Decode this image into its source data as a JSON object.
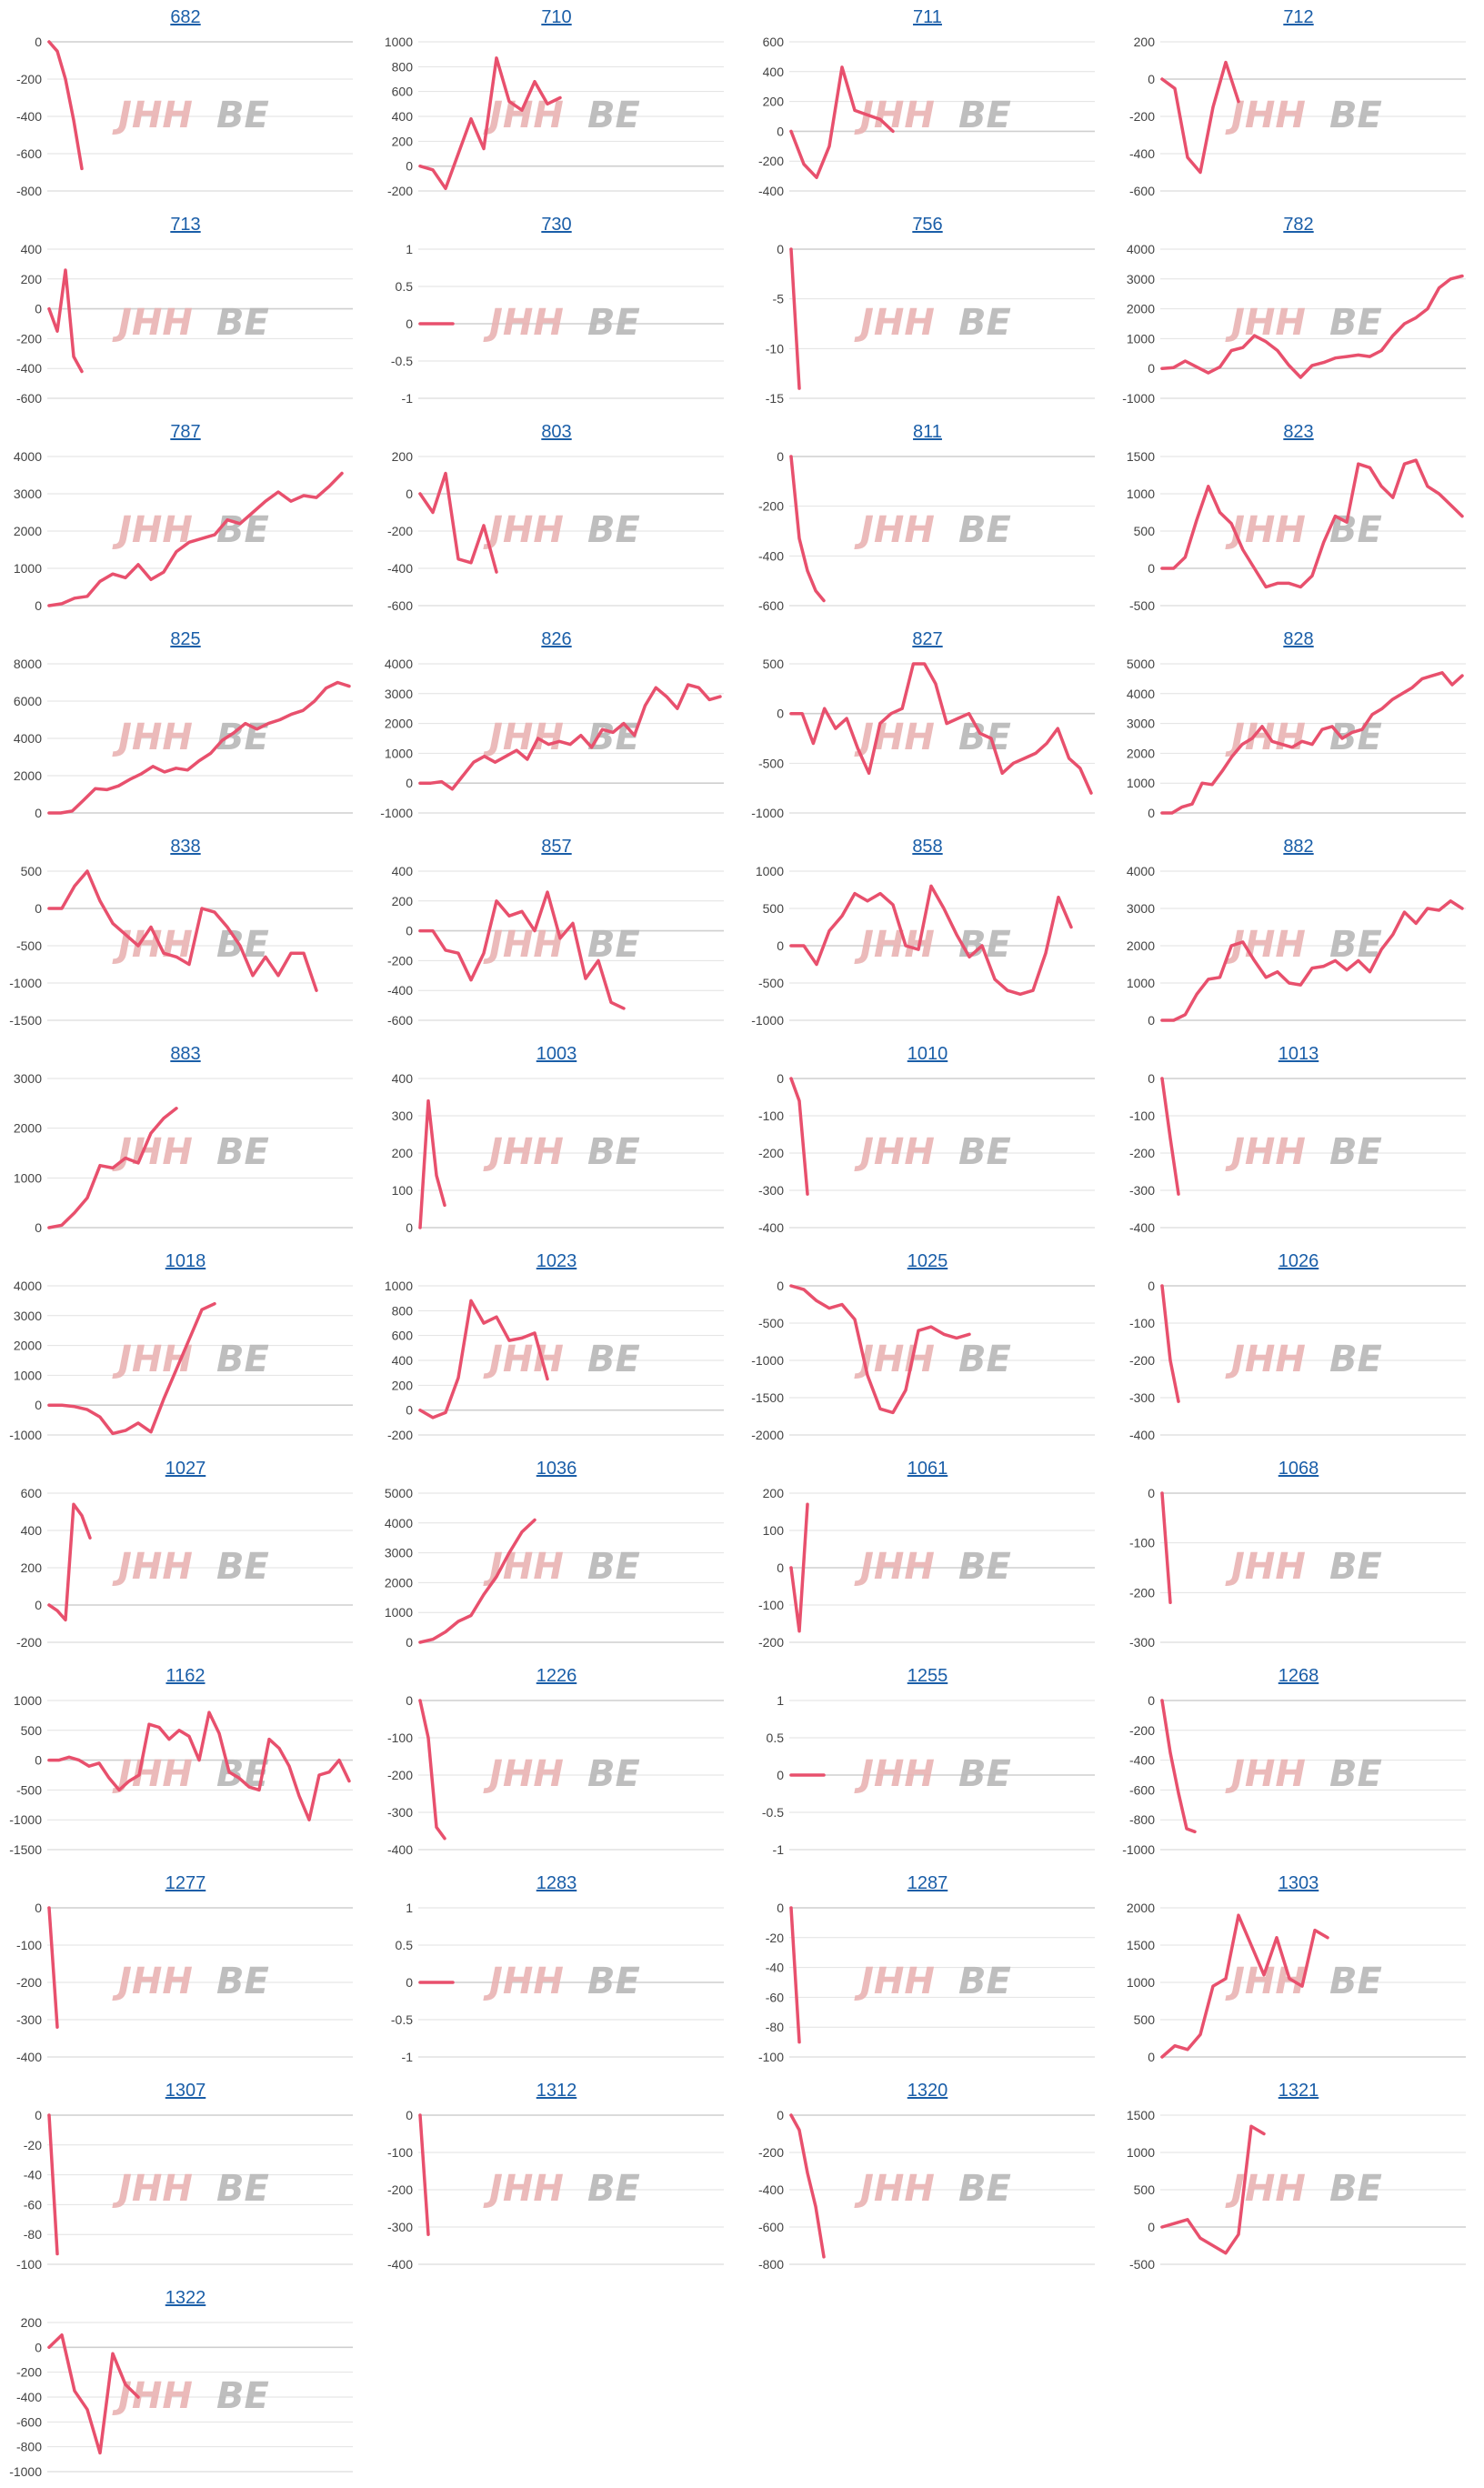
{
  "colors": {
    "line": "#e8506d",
    "grid": "#e2e2e2",
    "link": "#1a5ea8",
    "watermark_red": "#e9b3b3",
    "watermark_gray": "#b7b7b7"
  },
  "watermark_text": [
    "JHH",
    "BE"
  ],
  "chart_data": [
    {
      "type": "line",
      "title": "682",
      "yticks": [
        0,
        -200,
        -400,
        -600,
        -800
      ],
      "ylim": [
        -800,
        0
      ],
      "values": [
        0,
        -50,
        -200,
        -420,
        -680
      ]
    },
    {
      "type": "line",
      "title": "710",
      "yticks": [
        1000,
        800,
        600,
        400,
        200,
        0,
        -200
      ],
      "ylim": [
        -200,
        1000
      ],
      "values": [
        0,
        -30,
        -180,
        100,
        380,
        140,
        870,
        520,
        450,
        680,
        500,
        550
      ]
    },
    {
      "type": "line",
      "title": "711",
      "yticks": [
        600,
        400,
        200,
        0,
        -200,
        -400
      ],
      "ylim": [
        -400,
        600
      ],
      "values": [
        0,
        -220,
        -310,
        -100,
        430,
        140,
        110,
        80,
        0
      ]
    },
    {
      "type": "line",
      "title": "712",
      "yticks": [
        200,
        0,
        -200,
        -400,
        -600
      ],
      "ylim": [
        -600,
        200
      ],
      "values": [
        0,
        -50,
        -420,
        -500,
        -150,
        90,
        -120
      ]
    },
    {
      "type": "line",
      "title": "713",
      "yticks": [
        400,
        200,
        0,
        -200,
        -400,
        -600
      ],
      "ylim": [
        -600,
        400
      ],
      "values": [
        0,
        -150,
        260,
        -320,
        -420
      ]
    },
    {
      "type": "line",
      "title": "730",
      "yticks": [
        1.0,
        0.5,
        0,
        -0.5,
        -1.0
      ],
      "ylim": [
        -1,
        1
      ],
      "values": [
        0,
        0,
        0,
        0,
        0
      ]
    },
    {
      "type": "line",
      "title": "756",
      "yticks": [
        0,
        -5,
        -10,
        -15
      ],
      "ylim": [
        -15,
        0
      ],
      "values": [
        0,
        -14
      ]
    },
    {
      "type": "line",
      "title": "782",
      "yticks": [
        4000,
        3000,
        2000,
        1000,
        0,
        -1000
      ],
      "ylim": [
        -1000,
        4000
      ],
      "values": [
        0,
        30,
        250,
        50,
        -150,
        50,
        600,
        700,
        1100,
        900,
        600,
        100,
        -300,
        100,
        200,
        350,
        400,
        450,
        400,
        600,
        1100,
        1500,
        1700,
        2000,
        2700,
        3000,
        3100
      ]
    },
    {
      "type": "line",
      "title": "787",
      "yticks": [
        4000,
        3000,
        2000,
        1000,
        0
      ],
      "ylim": [
        0,
        4000
      ],
      "values": [
        0,
        50,
        200,
        250,
        650,
        850,
        750,
        1100,
        700,
        900,
        1450,
        1700,
        1800,
        1900,
        2300,
        2200,
        2500,
        2800,
        3050,
        2800,
        2950,
        2900,
        3200,
        3550
      ]
    },
    {
      "type": "line",
      "title": "803",
      "yticks": [
        200,
        0,
        -200,
        -400,
        -600
      ],
      "ylim": [
        -600,
        200
      ],
      "values": [
        0,
        -100,
        110,
        -350,
        -370,
        -170,
        -420
      ]
    },
    {
      "type": "line",
      "title": "811",
      "yticks": [
        0,
        -200,
        -400,
        -600
      ],
      "ylim": [
        -600,
        0
      ],
      "values": [
        0,
        -330,
        -460,
        -540,
        -580
      ]
    },
    {
      "type": "line",
      "title": "823",
      "yticks": [
        1500,
        1000,
        500,
        0,
        -500
      ],
      "ylim": [
        -500,
        1500
      ],
      "values": [
        0,
        0,
        150,
        650,
        1100,
        750,
        600,
        250,
        0,
        -250,
        -200,
        -200,
        -250,
        -100,
        350,
        700,
        620,
        1400,
        1350,
        1100,
        950,
        1400,
        1450,
        1100,
        1000,
        850,
        700
      ]
    },
    {
      "type": "line",
      "title": "825",
      "yticks": [
        8000,
        6000,
        4000,
        2000,
        0
      ],
      "ylim": [
        0,
        8000
      ],
      "values": [
        0,
        0,
        100,
        700,
        1300,
        1250,
        1450,
        1800,
        2100,
        2500,
        2200,
        2400,
        2300,
        2800,
        3200,
        3900,
        4300,
        4800,
        4500,
        4800,
        5000,
        5300,
        5500,
        6000,
        6700,
        7000,
        6800
      ]
    },
    {
      "type": "line",
      "title": "826",
      "yticks": [
        4000,
        3000,
        2000,
        1000,
        0,
        -1000
      ],
      "ylim": [
        -1000,
        4000
      ],
      "values": [
        0,
        0,
        50,
        -200,
        250,
        700,
        900,
        700,
        900,
        1100,
        800,
        1500,
        1300,
        1400,
        1300,
        1600,
        1200,
        1800,
        1700,
        2000,
        1600,
        2600,
        3200,
        2900,
        2500,
        3300,
        3200,
        2800,
        2900
      ]
    },
    {
      "type": "line",
      "title": "827",
      "yticks": [
        500,
        0,
        -500,
        -1000
      ],
      "ylim": [
        -1000,
        500
      ],
      "values": [
        0,
        0,
        -300,
        50,
        -150,
        -50,
        -350,
        -600,
        -100,
        0,
        50,
        500,
        500,
        300,
        -100,
        -50,
        0,
        -200,
        -250,
        -600,
        -500,
        -450,
        -400,
        -300,
        -150,
        -450,
        -550,
        -800
      ]
    },
    {
      "type": "line",
      "title": "828",
      "yticks": [
        5000,
        4000,
        3000,
        2000,
        1000,
        0
      ],
      "ylim": [
        0,
        5000
      ],
      "values": [
        0,
        0,
        200,
        300,
        1000,
        950,
        1400,
        1900,
        2300,
        2500,
        2900,
        2400,
        2300,
        2200,
        2400,
        2300,
        2800,
        2900,
        2500,
        2700,
        2800,
        3300,
        3500,
        3800,
        4000,
        4200,
        4500,
        4600,
        4700,
        4300,
        4600
      ]
    },
    {
      "type": "line",
      "title": "838",
      "yticks": [
        500,
        0,
        -500,
        -1000,
        -1500
      ],
      "ylim": [
        -1500,
        500
      ],
      "values": [
        0,
        0,
        300,
        500,
        100,
        -200,
        -350,
        -500,
        -250,
        -600,
        -650,
        -750,
        0,
        -50,
        -250,
        -500,
        -900,
        -650,
        -900,
        -600,
        -600,
        -1100
      ]
    },
    {
      "type": "line",
      "title": "857",
      "yticks": [
        400,
        200,
        0,
        -200,
        -400,
        -600
      ],
      "ylim": [
        -600,
        400
      ],
      "values": [
        0,
        0,
        -130,
        -150,
        -330,
        -150,
        200,
        100,
        130,
        0,
        260,
        -50,
        50,
        -320,
        -200,
        -480,
        -520
      ]
    },
    {
      "type": "line",
      "title": "858",
      "yticks": [
        1000,
        500,
        0,
        -500,
        -1000
      ],
      "ylim": [
        -1000,
        1000
      ],
      "values": [
        0,
        0,
        -250,
        200,
        400,
        700,
        600,
        700,
        550,
        0,
        -50,
        800,
        500,
        150,
        -150,
        0,
        -450,
        -600,
        -650,
        -600,
        -100,
        650,
        250
      ]
    },
    {
      "type": "line",
      "title": "882",
      "yticks": [
        4000,
        3000,
        2000,
        1000,
        0
      ],
      "ylim": [
        0,
        4000
      ],
      "values": [
        0,
        0,
        150,
        700,
        1100,
        1150,
        2000,
        2100,
        1600,
        1150,
        1300,
        1000,
        950,
        1400,
        1450,
        1600,
        1350,
        1600,
        1300,
        1900,
        2300,
        2900,
        2600,
        3000,
        2950,
        3200,
        3000
      ]
    },
    {
      "type": "line",
      "title": "883",
      "yticks": [
        3000,
        2000,
        1000,
        0
      ],
      "ylim": [
        0,
        3000
      ],
      "values": [
        0,
        50,
        300,
        600,
        1250,
        1200,
        1400,
        1300,
        1900,
        2200,
        2400
      ]
    },
    {
      "type": "line",
      "title": "1003",
      "yticks": [
        400,
        300,
        200,
        100,
        0
      ],
      "ylim": [
        0,
        400
      ],
      "values": [
        0,
        340,
        140,
        60
      ]
    },
    {
      "type": "line",
      "title": "1010",
      "yticks": [
        0,
        -100,
        -200,
        -300,
        -400
      ],
      "ylim": [
        -400,
        0
      ],
      "values": [
        0,
        -60,
        -310
      ]
    },
    {
      "type": "line",
      "title": "1013",
      "yticks": [
        0,
        -100,
        -200,
        -300,
        -400
      ],
      "ylim": [
        -400,
        0
      ],
      "values": [
        0,
        -160,
        -310
      ]
    },
    {
      "type": "line",
      "title": "1018",
      "yticks": [
        4000,
        3000,
        2000,
        1000,
        0,
        -1000
      ],
      "ylim": [
        -1000,
        4000
      ],
      "values": [
        0,
        0,
        -50,
        -150,
        -400,
        -950,
        -850,
        -600,
        -900,
        200,
        1200,
        2200,
        3200,
        3400
      ]
    },
    {
      "type": "line",
      "title": "1023",
      "yticks": [
        1000,
        800,
        600,
        400,
        200,
        0,
        -200
      ],
      "ylim": [
        -200,
        1000
      ],
      "values": [
        0,
        -60,
        -20,
        260,
        880,
        700,
        750,
        560,
        580,
        620,
        250
      ]
    },
    {
      "type": "line",
      "title": "1025",
      "yticks": [
        0,
        -500,
        -1000,
        -1500,
        -2000
      ],
      "ylim": [
        -2000,
        0
      ],
      "values": [
        0,
        -50,
        -200,
        -300,
        -250,
        -450,
        -1200,
        -1650,
        -1700,
        -1400,
        -600,
        -550,
        -650,
        -700,
        -650
      ]
    },
    {
      "type": "line",
      "title": "1026",
      "yticks": [
        0,
        -100,
        -200,
        -300,
        -400
      ],
      "ylim": [
        -400,
        0
      ],
      "values": [
        0,
        -200,
        -310
      ]
    },
    {
      "type": "line",
      "title": "1027",
      "yticks": [
        600,
        400,
        200,
        0,
        -200
      ],
      "ylim": [
        -200,
        600
      ],
      "values": [
        0,
        -30,
        -80,
        540,
        480,
        360
      ]
    },
    {
      "type": "line",
      "title": "1036",
      "yticks": [
        5000,
        4000,
        3000,
        2000,
        1000,
        0
      ],
      "ylim": [
        0,
        5000
      ],
      "values": [
        0,
        100,
        350,
        700,
        900,
        1600,
        2200,
        3000,
        3700,
        4100
      ]
    },
    {
      "type": "line",
      "title": "1061",
      "yticks": [
        200,
        100,
        0,
        -100,
        -200
      ],
      "ylim": [
        -200,
        200
      ],
      "values": [
        0,
        -170,
        170
      ]
    },
    {
      "type": "line",
      "title": "1068",
      "yticks": [
        0,
        -100,
        -200,
        -300
      ],
      "ylim": [
        -300,
        0
      ],
      "values": [
        0,
        -220
      ]
    },
    {
      "type": "line",
      "title": "1162",
      "yticks": [
        1000,
        500,
        0,
        -500,
        -1000,
        -1500
      ],
      "ylim": [
        -1500,
        1000
      ],
      "values": [
        0,
        0,
        50,
        0,
        -100,
        -50,
        -300,
        -500,
        -350,
        -250,
        600,
        550,
        350,
        500,
        400,
        0,
        800,
        450,
        -200,
        -300,
        -450,
        -500,
        350,
        200,
        -100,
        -600,
        -1000,
        -250,
        -200,
        0,
        -350
      ]
    },
    {
      "type": "line",
      "title": "1226",
      "yticks": [
        0,
        -100,
        -200,
        -300,
        -400
      ],
      "ylim": [
        -400,
        0
      ],
      "values": [
        0,
        -100,
        -340,
        -370
      ]
    },
    {
      "type": "line",
      "title": "1255",
      "yticks": [
        1.0,
        0.5,
        0,
        -0.5,
        -1.0
      ],
      "ylim": [
        -1,
        1
      ],
      "values": [
        0,
        0,
        0,
        0,
        0
      ]
    },
    {
      "type": "line",
      "title": "1268",
      "yticks": [
        0,
        -200,
        -400,
        -600,
        -800,
        -1000
      ],
      "ylim": [
        -1000,
        0
      ],
      "values": [
        0,
        -350,
        -620,
        -860,
        -880
      ]
    },
    {
      "type": "line",
      "title": "1277",
      "yticks": [
        0,
        -100,
        -200,
        -300,
        -400
      ],
      "ylim": [
        -400,
        0
      ],
      "values": [
        0,
        -320
      ]
    },
    {
      "type": "line",
      "title": "1283",
      "yticks": [
        1.0,
        0.5,
        0,
        -0.5,
        -1.0
      ],
      "ylim": [
        -1,
        1
      ],
      "values": [
        0,
        0,
        0,
        0,
        0
      ]
    },
    {
      "type": "line",
      "title": "1287",
      "yticks": [
        0,
        -20,
        -40,
        -60,
        -80,
        -100
      ],
      "ylim": [
        -100,
        0
      ],
      "values": [
        0,
        -90
      ]
    },
    {
      "type": "line",
      "title": "1303",
      "yticks": [
        2000,
        1500,
        1000,
        500,
        0
      ],
      "ylim": [
        0,
        2000
      ],
      "values": [
        0,
        150,
        100,
        300,
        950,
        1050,
        1900,
        1500,
        1100,
        1600,
        1050,
        950,
        1700,
        1600
      ]
    },
    {
      "type": "line",
      "title": "1307",
      "yticks": [
        0,
        -20,
        -40,
        -60,
        -80,
        -100
      ],
      "ylim": [
        -100,
        0
      ],
      "values": [
        0,
        -93
      ]
    },
    {
      "type": "line",
      "title": "1312",
      "yticks": [
        0,
        -100,
        -200,
        -300,
        -400
      ],
      "ylim": [
        -400,
        0
      ],
      "values": [
        0,
        -320
      ]
    },
    {
      "type": "line",
      "title": "1320",
      "yticks": [
        0,
        -200,
        -400,
        -600,
        -800
      ],
      "ylim": [
        -800,
        0
      ],
      "values": [
        0,
        -80,
        -310,
        -490,
        -760
      ]
    },
    {
      "type": "line",
      "title": "1321",
      "yticks": [
        1500,
        1000,
        500,
        0,
        -500
      ],
      "ylim": [
        -500,
        1500
      ],
      "values": [
        0,
        50,
        100,
        -150,
        -250,
        -350,
        -100,
        1350,
        1250
      ]
    },
    {
      "type": "line",
      "title": "1322",
      "yticks": [
        200,
        0,
        -200,
        -400,
        -600,
        -800,
        -1000
      ],
      "ylim": [
        -1000,
        200
      ],
      "values": [
        0,
        100,
        -350,
        -500,
        -850,
        -50,
        -300,
        -400
      ]
    }
  ]
}
